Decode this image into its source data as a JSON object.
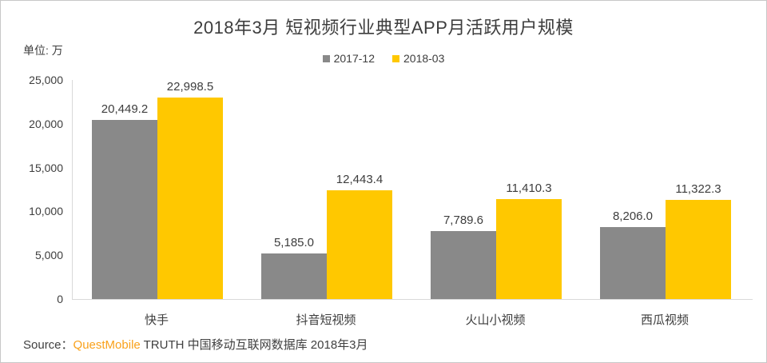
{
  "chart_data": {
    "type": "bar",
    "title": "2018年3月 短视频行业典型APP月活跃用户规模",
    "unit_label": "单位: 万",
    "categories": [
      "快手",
      "抖音短视频",
      "火山小视频",
      "西瓜视频"
    ],
    "series": [
      {
        "name": "2017-12",
        "color": "#898989",
        "values": [
          20449.2,
          5185.0,
          7789.6,
          8206.0
        ]
      },
      {
        "name": "2018-03",
        "color": "#FFC800",
        "values": [
          22998.5,
          12443.4,
          11410.3,
          11322.3
        ]
      }
    ],
    "ylim": [
      0,
      25000
    ],
    "yticks": [
      0,
      5000,
      10000,
      15000,
      20000,
      25000
    ],
    "grid": false,
    "legend_position": "top-center",
    "value_labels_shown": true
  },
  "source": {
    "prefix": "Source：",
    "brand": "QuestMobile",
    "suffix": " TRUTH 中国移动互联网数据库 2018年3月",
    "brand_color": "#F9A11B"
  },
  "page": {
    "background": "#FFFFFF",
    "border_color": "#C8C8C8",
    "axis_color": "#D9D9D9",
    "text_color": "#3D3D3D"
  }
}
